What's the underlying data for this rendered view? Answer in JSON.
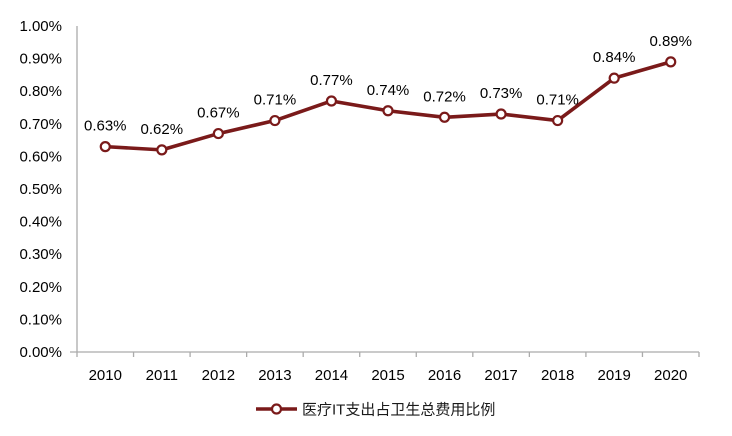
{
  "figure": {
    "background": "#FFFFFF"
  },
  "chart_data": {
    "type": "line",
    "title": "",
    "xlabel": "",
    "ylabel": "",
    "categories": [
      "2010",
      "2011",
      "2012",
      "2013",
      "2014",
      "2015",
      "2016",
      "2017",
      "2018",
      "2019",
      "2020"
    ],
    "series": [
      {
        "name": "医疗IT支出占卫生总费用比例",
        "values": [
          0.63,
          0.62,
          0.67,
          0.71,
          0.77,
          0.74,
          0.72,
          0.73,
          0.71,
          0.84,
          0.89
        ],
        "color": "#7A1A1A",
        "marker": "open-circle"
      }
    ],
    "point_labels": [
      "0.63%",
      "0.62%",
      "0.67%",
      "0.71%",
      "0.77%",
      "0.74%",
      "0.72%",
      "0.73%",
      "0.71%",
      "0.84%",
      "0.89%"
    ],
    "y_tick_labels": [
      "0.00%",
      "0.10%",
      "0.20%",
      "0.30%",
      "0.40%",
      "0.50%",
      "0.60%",
      "0.70%",
      "0.80%",
      "0.90%",
      "1.00%"
    ],
    "ylim": [
      0.0,
      1.0
    ],
    "y_tick_step": 0.1,
    "unit": "%",
    "grid": false,
    "legend_position": "bottom-center",
    "colors": {
      "line": "#7A1A1A",
      "marker_fill": "#FFFFFF",
      "axis": "#ABABAB",
      "label_text": "#000000",
      "legend_text": "#1A1A1A"
    }
  }
}
